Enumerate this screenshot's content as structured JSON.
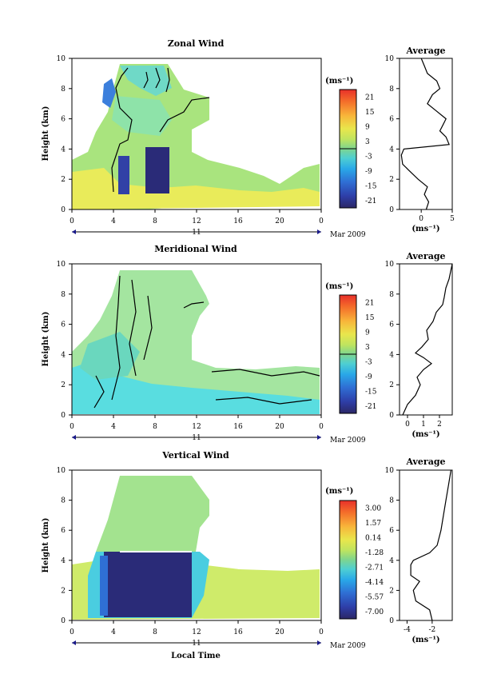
{
  "chart_data": [
    {
      "type": "heatmap",
      "title": "Zonal Wind",
      "ylabel": "Height (km)",
      "xticks": [
        "0",
        "4",
        "8",
        "12",
        "16",
        "20",
        "0"
      ],
      "yticks": [
        "0",
        "2",
        "4",
        "6",
        "8",
        "10"
      ],
      "date_day": "11",
      "date_label": "Mar 2009",
      "unit": "(ms⁻¹)",
      "colorbar": [
        "21",
        "15",
        "9",
        "3",
        "-3",
        "-9",
        "-15",
        "-21"
      ],
      "avg_title": "Average",
      "avg_xticks": [
        "0",
        "5"
      ],
      "avg_xlabel": "(ms⁻¹)",
      "xlim": [
        0,
        24
      ],
      "ylim": [
        0,
        10
      ],
      "avg_xlim": [
        -3.5,
        5
      ],
      "avg_profile": [
        [
          0.8,
          0.0
        ],
        [
          1.2,
          0.5
        ],
        [
          0.5,
          1.0
        ],
        [
          1.0,
          1.5
        ],
        [
          -0.5,
          2.0
        ],
        [
          -2.0,
          2.6
        ],
        [
          -3.0,
          3.0
        ],
        [
          -3.2,
          3.6
        ],
        [
          -2.8,
          4.0
        ],
        [
          4.5,
          4.3
        ],
        [
          4.0,
          4.8
        ],
        [
          3.0,
          5.2
        ],
        [
          3.5,
          5.6
        ],
        [
          4.0,
          6.0
        ],
        [
          2.5,
          6.5
        ],
        [
          1.0,
          7.0
        ],
        [
          1.8,
          7.6
        ],
        [
          3.0,
          8.0
        ],
        [
          2.5,
          8.5
        ],
        [
          1.0,
          9.0
        ],
        [
          0.5,
          9.5
        ],
        [
          0.0,
          10.0
        ]
      ]
    },
    {
      "type": "heatmap",
      "title": "Meridional Wind",
      "ylabel": "Height (km)",
      "xticks": [
        "0",
        "4",
        "8",
        "12",
        "16",
        "20",
        "0"
      ],
      "yticks": [
        "0",
        "2",
        "4",
        "6",
        "8",
        "10"
      ],
      "date_day": "11",
      "date_label": "Mar 2009",
      "unit": "(ms⁻¹)",
      "colorbar": [
        "21",
        "15",
        "9",
        "3",
        "-3",
        "-9",
        "-15",
        "-21"
      ],
      "avg_title": "Average",
      "avg_xticks": [
        "0",
        "1",
        "2"
      ],
      "avg_xlabel": "(ms⁻¹)",
      "xlim": [
        0,
        24
      ],
      "ylim": [
        0,
        10
      ],
      "avg_xlim": [
        -0.5,
        2.8
      ],
      "avg_profile": [
        [
          -0.3,
          0.0
        ],
        [
          0.0,
          0.7
        ],
        [
          0.5,
          1.3
        ],
        [
          0.8,
          2.0
        ],
        [
          0.6,
          2.5
        ],
        [
          1.0,
          3.0
        ],
        [
          1.5,
          3.4
        ],
        [
          1.0,
          3.8
        ],
        [
          0.5,
          4.1
        ],
        [
          0.9,
          4.5
        ],
        [
          1.3,
          5.0
        ],
        [
          1.2,
          5.6
        ],
        [
          1.6,
          6.2
        ],
        [
          1.8,
          6.8
        ],
        [
          2.2,
          7.3
        ],
        [
          2.3,
          7.8
        ],
        [
          2.4,
          8.4
        ],
        [
          2.6,
          9.0
        ],
        [
          2.7,
          9.5
        ],
        [
          2.8,
          10.0
        ]
      ]
    },
    {
      "type": "heatmap",
      "title": "Vertical Wind",
      "ylabel": "Height (km)",
      "xlabel": "Local Time",
      "xticks": [
        "0",
        "4",
        "8",
        "12",
        "16",
        "20",
        "0"
      ],
      "yticks": [
        "0",
        "2",
        "4",
        "6",
        "8",
        "10"
      ],
      "date_day": "11",
      "date_label": "Mar 2009",
      "unit": "(ms⁻¹)",
      "colorbar": [
        "3.00",
        "1.57",
        "0.14",
        "-1.28",
        "-2.71",
        "-4.14",
        "-5.57",
        "-7.00"
      ],
      "avg_title": "Average",
      "avg_xticks": [
        "-4",
        "-2"
      ],
      "avg_xlabel": "(ms⁻¹)",
      "xlim": [
        0,
        24
      ],
      "ylim": [
        0,
        10
      ],
      "avg_xlim": [
        -4.6,
        -0.4
      ],
      "avg_profile": [
        [
          -2.0,
          0.0
        ],
        [
          -2.2,
          0.7
        ],
        [
          -3.3,
          1.3
        ],
        [
          -3.5,
          2.0
        ],
        [
          -3.0,
          2.6
        ],
        [
          -3.7,
          3.0
        ],
        [
          -3.7,
          3.7
        ],
        [
          -3.5,
          4.0
        ],
        [
          -2.2,
          4.5
        ],
        [
          -1.6,
          5.0
        ],
        [
          -1.3,
          6.0
        ],
        [
          -1.1,
          7.0
        ],
        [
          -0.9,
          8.0
        ],
        [
          -0.7,
          9.0
        ],
        [
          -0.5,
          10.0
        ]
      ]
    }
  ]
}
